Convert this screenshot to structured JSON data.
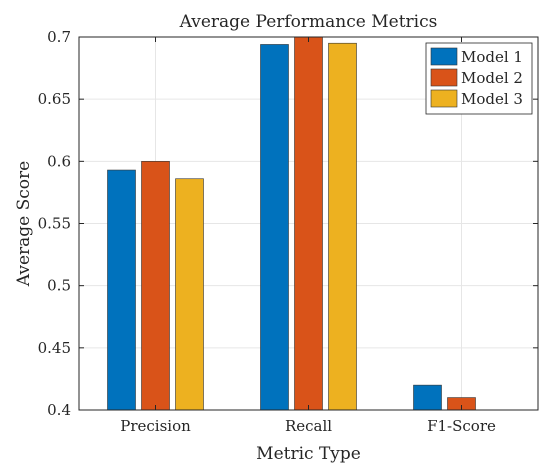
{
  "chart_data": {
    "type": "bar",
    "title": "Average Performance Metrics",
    "xlabel": "Metric Type",
    "ylabel": "Average Score",
    "categories": [
      "Precision",
      "Recall",
      "F1-Score"
    ],
    "series": [
      {
        "name": "Model 1",
        "values": [
          0.593,
          0.694,
          0.42
        ],
        "color": "#0072BD"
      },
      {
        "name": "Model 2",
        "values": [
          0.6,
          0.7,
          0.41
        ],
        "color": "#D95319"
      },
      {
        "name": "Model 3",
        "values": [
          0.586,
          0.695,
          0.4
        ],
        "color": "#EDB120"
      }
    ],
    "ylim": [
      0.4,
      0.7
    ],
    "yticks": [
      0.4,
      0.45,
      0.5,
      0.55,
      0.6,
      0.65,
      0.7
    ],
    "ytick_labels": [
      "0.4",
      "0.45",
      "0.5",
      "0.55",
      "0.6",
      "0.65",
      "0.7"
    ],
    "grid": true,
    "legend_position": "top-right"
  }
}
